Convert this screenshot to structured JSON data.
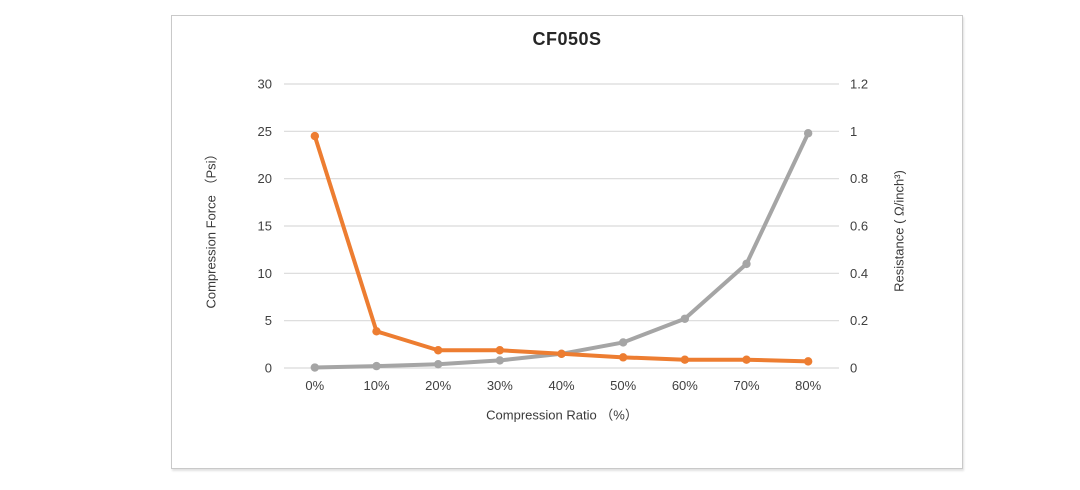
{
  "window": {
    "background": "#ffffff"
  },
  "chart_data": {
    "type": "line",
    "title": "CF050S",
    "categories": [
      "0%",
      "10%",
      "20%",
      "30%",
      "40%",
      "50%",
      "60%",
      "70%",
      "80%"
    ],
    "xlabel": "Compression Ratio （%）",
    "ylabel_left": "Compression Force （Psi）",
    "ylabel_right": "Resistance ( Ω/inch³)",
    "left_axis": {
      "ticks": [
        "0",
        "5",
        "10",
        "15",
        "20",
        "25",
        "30"
      ],
      "range": [
        0,
        30
      ]
    },
    "right_axis": {
      "ticks": [
        "0",
        "0.2",
        "0.4",
        "0.6",
        "0.8",
        "1",
        "1.2"
      ],
      "range": [
        0,
        1.2
      ]
    },
    "series": [
      {
        "name": "Compression Force (Psi)",
        "axis": "left",
        "color": "#A5A5A5",
        "values": [
          0.05,
          0.2,
          0.4,
          0.8,
          1.5,
          2.7,
          5.2,
          11,
          24.8
        ]
      },
      {
        "name": "Resistance (Ω/inch³)",
        "axis": "right",
        "color": "#ED7D31",
        "values": [
          0.98,
          0.155,
          0.075,
          0.075,
          0.06,
          0.045,
          0.035,
          0.035,
          0.028
        ]
      }
    ],
    "grid": true,
    "legend": "none",
    "colors": {
      "grid": "#d9d9d9",
      "tick_text": "#404040",
      "title_text": "#262626",
      "border": "#c9c9c9"
    }
  }
}
